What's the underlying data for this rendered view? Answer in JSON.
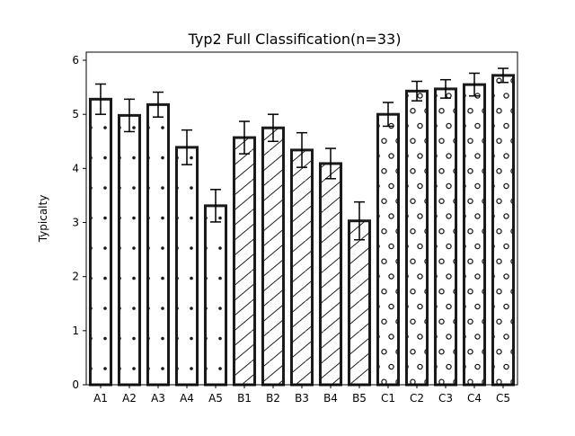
{
  "chart_data": {
    "type": "bar",
    "title": "Typ2 Full Classification(n=33)",
    "xlabel": "",
    "ylabel": "Typicalty",
    "ylim": [
      0,
      6.15
    ],
    "yticks": [
      0,
      1,
      2,
      3,
      4,
      5,
      6
    ],
    "categories": [
      "A1",
      "A2",
      "A3",
      "A4",
      "A5",
      "B1",
      "B2",
      "B3",
      "B4",
      "B5",
      "C1",
      "C2",
      "C3",
      "C4",
      "C5"
    ],
    "values": [
      5.28,
      4.98,
      5.18,
      4.39,
      3.31,
      4.57,
      4.75,
      4.34,
      4.09,
      3.03,
      5.0,
      5.43,
      5.47,
      5.55,
      5.72
    ],
    "errors": [
      0.28,
      0.3,
      0.23,
      0.32,
      0.3,
      0.3,
      0.25,
      0.32,
      0.28,
      0.35,
      0.22,
      0.18,
      0.17,
      0.21,
      0.13
    ],
    "groups": [
      {
        "pattern": "dots",
        "members": [
          "A1",
          "A2",
          "A3",
          "A4",
          "A5"
        ]
      },
      {
        "pattern": "hatch",
        "members": [
          "B1",
          "B2",
          "B3",
          "B4",
          "B5"
        ]
      },
      {
        "pattern": "circles",
        "members": [
          "C1",
          "C2",
          "C3",
          "C4",
          "C5"
        ]
      }
    ],
    "colors": {
      "bar_edge": "#1a1a1a",
      "bar_fill": "#ffffff",
      "error_bar": "#000000"
    },
    "grid": false,
    "legend": "none"
  }
}
